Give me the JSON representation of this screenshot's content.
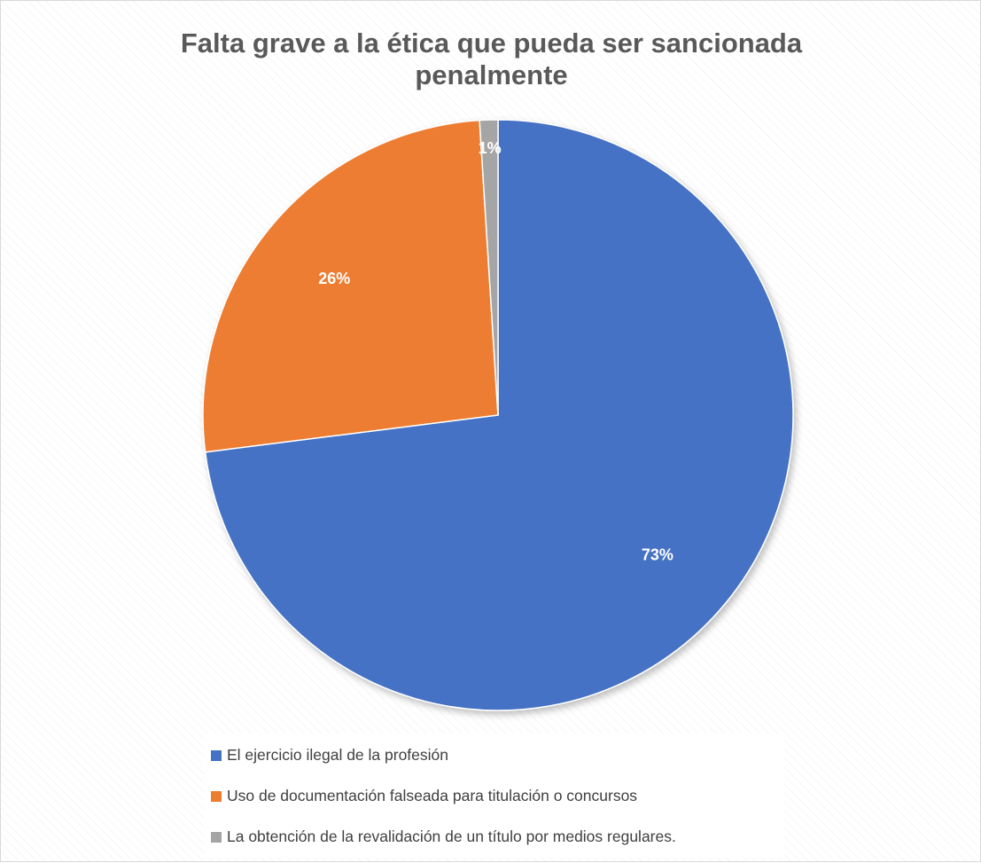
{
  "chart_data": {
    "type": "pie",
    "title_lines": [
      "Falta grave a la ética que pueda ser sancionada",
      "penalmente"
    ],
    "categories": [
      "El ejercicio ilegal de la profesión",
      "Uso de documentación falseada para titulación o concursos",
      "La obtención de la revalidación de un título por medios regulares."
    ],
    "values": [
      73,
      26,
      1
    ],
    "data_labels": [
      "73%",
      "26%",
      "1%"
    ],
    "colors": [
      "#4472c4",
      "#ed7d31",
      "#a5a5a5"
    ],
    "legend_position": "bottom"
  }
}
